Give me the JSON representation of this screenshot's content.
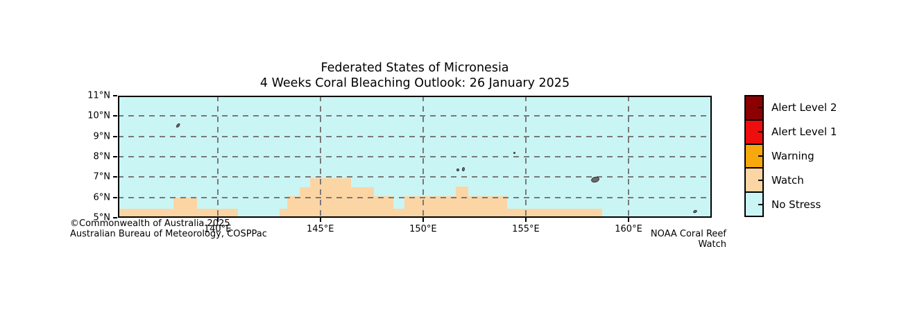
{
  "title": {
    "line1": "Federated States of Micronesia",
    "line2": "4 Weeks Coral Bleaching Outlook: 26 January 2025"
  },
  "footer": {
    "left_line1": "©Commonwealth of Australia 2025",
    "left_line2": "Australian Bureau of Meteorology, COSPPac",
    "right": "NOAA Coral Reef Watch"
  },
  "legend": {
    "entries": [
      {
        "label": "Alert Level 2",
        "color": "#8B0000"
      },
      {
        "label": "Alert Level 1",
        "color": "#EE0E0E"
      },
      {
        "label": "Warning",
        "color": "#F7A80D"
      },
      {
        "label": "Watch",
        "color": "#FCD5A4"
      },
      {
        "label": "No Stress",
        "color": "#CAF5F5"
      }
    ]
  },
  "chart_data": {
    "type": "heatmap",
    "title": "Federated States of Micronesia — 4 Weeks Coral Bleaching Outlook: 26 January 2025",
    "projection_extent": {
      "lon_min": 135.15,
      "lon_max": 164.05,
      "lat_min": 5.0,
      "lat_max": 11.0
    },
    "x_ticks": [
      {
        "label": "140°E",
        "lon": 140
      },
      {
        "label": "145°E",
        "lon": 145
      },
      {
        "label": "150°E",
        "lon": 150
      },
      {
        "label": "155°E",
        "lon": 155
      },
      {
        "label": "160°E",
        "lon": 160
      }
    ],
    "y_ticks": [
      {
        "label": "11°N",
        "lat": 11
      },
      {
        "label": "10°N",
        "lat": 10
      },
      {
        "label": "9°N",
        "lat": 9
      },
      {
        "label": "8°N",
        "lat": 8
      },
      {
        "label": "7°N",
        "lat": 7
      },
      {
        "label": "6°N",
        "lat": 6
      },
      {
        "label": "5°N",
        "lat": 5
      }
    ],
    "gridlines": {
      "lats": [
        10,
        9,
        8,
        7,
        6
      ],
      "lons": [
        140,
        145,
        150,
        155,
        160
      ]
    },
    "no_stress_color": "#CAF5F5",
    "watch_color": "#FCD5A4",
    "land_color": "#6b6b6b",
    "watch_cells": [
      {
        "lon_min": 135.15,
        "lon_max": 141.0,
        "lat_min": 5.0,
        "lat_max": 5.45
      },
      {
        "lon_min": 137.85,
        "lon_max": 139.0,
        "lat_min": 5.0,
        "lat_max": 6.0
      },
      {
        "lon_min": 143.0,
        "lon_max": 158.7,
        "lat_min": 5.0,
        "lat_max": 5.45
      },
      {
        "lon_min": 143.4,
        "lon_max": 148.55,
        "lat_min": 5.0,
        "lat_max": 6.05
      },
      {
        "lon_min": 149.1,
        "lon_max": 154.1,
        "lat_min": 5.0,
        "lat_max": 6.05
      },
      {
        "lon_min": 144.0,
        "lon_max": 147.6,
        "lat_min": 5.0,
        "lat_max": 6.5
      },
      {
        "lon_min": 144.5,
        "lon_max": 146.5,
        "lat_min": 5.0,
        "lat_max": 6.93
      },
      {
        "lon_min": 151.6,
        "lon_max": 152.2,
        "lat_min": 5.0,
        "lat_max": 6.55
      }
    ],
    "islands": [
      {
        "lon": 138.08,
        "lat": 9.53,
        "w": 7,
        "h": 3.5,
        "rot": -50
      },
      {
        "lon": 151.7,
        "lat": 7.34,
        "w": 4,
        "h": 4,
        "rot": 0
      },
      {
        "lon": 151.97,
        "lat": 7.4,
        "w": 4,
        "h": 6,
        "rot": 10
      },
      {
        "lon": 154.44,
        "lat": 8.2,
        "w": 3,
        "h": 3,
        "rot": 0
      },
      {
        "lon": 158.37,
        "lat": 6.86,
        "w": 12,
        "h": 8,
        "rot": -15
      },
      {
        "lon": 163.23,
        "lat": 5.29,
        "w": 6,
        "h": 4,
        "rot": -25
      }
    ]
  }
}
